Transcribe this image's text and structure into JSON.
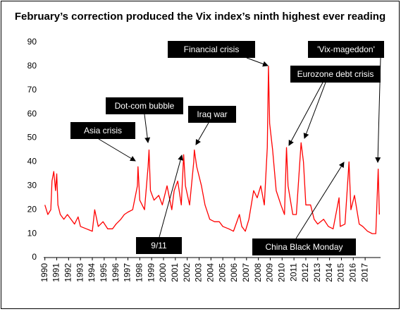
{
  "chart_data": {
    "type": "line",
    "title": "February’s correction produced the Vix index’s ninth highest ever reading",
    "x": [
      1990.0,
      1990.25,
      1990.5,
      1990.6,
      1990.75,
      1990.9,
      1991.0,
      1991.1,
      1991.3,
      1991.6,
      1991.9,
      1992.2,
      1992.5,
      1992.8,
      1993.0,
      1993.5,
      1994.0,
      1994.2,
      1994.5,
      1994.9,
      1995.3,
      1995.7,
      1996.0,
      1996.4,
      1996.7,
      1997.0,
      1997.4,
      1997.8,
      1997.85,
      1998.0,
      1998.4,
      1998.7,
      1998.78,
      1998.9,
      1999.2,
      1999.6,
      1999.9,
      2000.3,
      2000.7,
      2000.9,
      2001.2,
      2001.5,
      2001.7,
      2001.85,
      2002.2,
      2002.55,
      2002.6,
      2002.8,
      2003.0,
      2003.2,
      2003.5,
      2003.9,
      2004.3,
      2004.7,
      2005.0,
      2005.5,
      2005.9,
      2006.4,
      2006.6,
      2006.9,
      2007.2,
      2007.6,
      2007.9,
      2008.2,
      2008.5,
      2008.75,
      2008.85,
      2008.95,
      2009.2,
      2009.5,
      2009.9,
      2010.2,
      2010.37,
      2010.5,
      2010.9,
      2011.2,
      2011.6,
      2011.8,
      2012.0,
      2012.4,
      2012.7,
      2013.0,
      2013.5,
      2013.9,
      2014.3,
      2014.8,
      2014.9,
      2015.3,
      2015.64,
      2015.8,
      2016.1,
      2016.5,
      2016.8,
      2017.2,
      2017.6,
      2017.9,
      2018.1,
      2018.2
    ],
    "series": [
      {
        "name": "Vix",
        "color": "#ff0000",
        "values": [
          22,
          18,
          20,
          32,
          36,
          28,
          35,
          22,
          18,
          16,
          18,
          16,
          14,
          17,
          13,
          12,
          11,
          20,
          13,
          15,
          12,
          12,
          14,
          16,
          18,
          19,
          20,
          30,
          38,
          24,
          20,
          38,
          45,
          28,
          24,
          26,
          22,
          30,
          20,
          28,
          32,
          22,
          43,
          30,
          22,
          40,
          45,
          38,
          34,
          30,
          22,
          16,
          15,
          15,
          13,
          12,
          11,
          18,
          13,
          11,
          16,
          28,
          25,
          30,
          22,
          46,
          80,
          56,
          45,
          28,
          22,
          18,
          46,
          30,
          18,
          18,
          48,
          40,
          22,
          22,
          16,
          14,
          16,
          13,
          12,
          25,
          13,
          14,
          40,
          20,
          26,
          14,
          13,
          11,
          10,
          10,
          37,
          18
        ]
      }
    ],
    "xlim": [
      1989.9,
      2018.3
    ],
    "xticks": [
      1990,
      1991,
      1992,
      1993,
      1994,
      1995,
      1996,
      1997,
      1998,
      1999,
      2000,
      2001,
      2002,
      2003,
      2004,
      2005,
      2006,
      2007,
      2008,
      2009,
      2010,
      2011,
      2012,
      2013,
      2014,
      2015,
      2016,
      2017
    ],
    "ylim": [
      0,
      90
    ],
    "yticks": [
      0,
      10,
      20,
      30,
      40,
      50,
      60,
      70,
      80,
      90
    ],
    "grid": false,
    "annotations": [
      "Financial crisis",
      "'Vix-mageddon'",
      "Eurozone debt crisis",
      "Dot-com bubble",
      "Asia crisis",
      "Iraq war",
      "9/11",
      "China Black Monday"
    ]
  }
}
